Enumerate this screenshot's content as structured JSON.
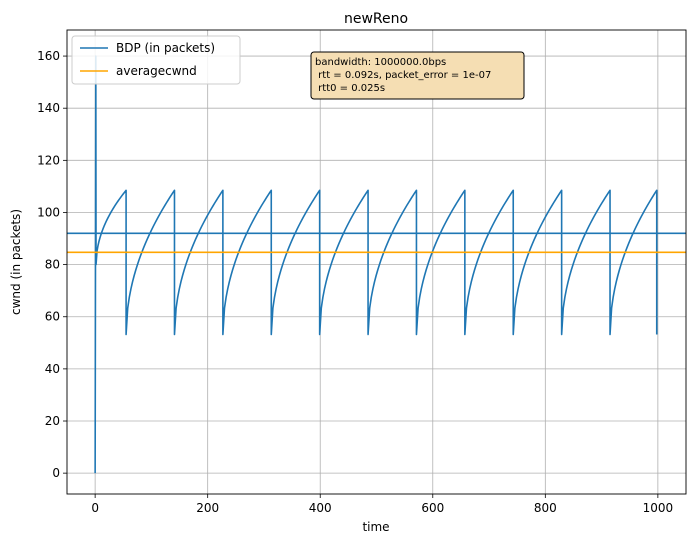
{
  "chart_data": {
    "type": "line",
    "title": "newReno",
    "xlabel": "time",
    "ylabel": "cwnd (in packets)",
    "xlim": [
      -50,
      1050
    ],
    "ylim": [
      -8,
      170
    ],
    "xticks": [
      0,
      200,
      400,
      600,
      800,
      1000
    ],
    "yticks": [
      0,
      20,
      40,
      60,
      80,
      100,
      120,
      140,
      160
    ],
    "grid": true,
    "legend_position": "top-left",
    "annotation": {
      "lines": [
        "bandwidth: 1000000.0bps",
        " rtt = 0.092s, packet_error = 1e-07",
        " rtt0 = 0.025s"
      ],
      "background": "#f5deb3"
    },
    "series": [
      {
        "name": "BDP (in packets)",
        "color": "#1f77b4",
        "kind": "sawtooth",
        "startup": {
          "x": 0,
          "y_start": 0,
          "y_peak": 160,
          "y_after": 80
        },
        "first_peak": {
          "x": 55,
          "y": 108.5
        },
        "loss_times": [
          55,
          141,
          227,
          313,
          399,
          485,
          571,
          657,
          743,
          829,
          915
        ],
        "end": {
          "x": 998,
          "y": 108.5
        },
        "y_min": 53.2,
        "y_max": 108.5
      },
      {
        "name": "",
        "color": "#1f77b4",
        "kind": "hline",
        "y": 92
      },
      {
        "name": "averagecwnd",
        "color": "#ffa500",
        "kind": "hline",
        "y": 84.7
      }
    ]
  }
}
